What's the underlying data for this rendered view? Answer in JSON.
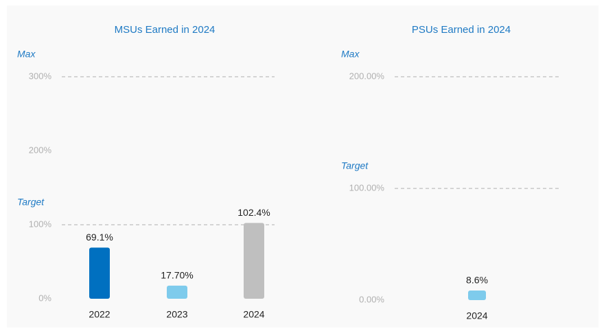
{
  "chart_data": [
    {
      "type": "bar",
      "title": "MSUs Earned in 2024",
      "categories": [
        "2022",
        "2023",
        "2024"
      ],
      "values": [
        69.1,
        17.7,
        102.4
      ],
      "value_labels": [
        "69.1%",
        "17.70%",
        "102.4%"
      ],
      "colors": [
        "#0070c0",
        "#7ecbec",
        "#bfbfbf"
      ],
      "ylim": [
        0,
        300
      ],
      "yticks": [
        {
          "value": 0,
          "label": "0%"
        },
        {
          "value": 100,
          "label": "100%"
        },
        {
          "value": 200,
          "label": "200%"
        },
        {
          "value": 300,
          "label": "300%"
        }
      ],
      "reference_lines": [
        {
          "label": "Max",
          "value": 300
        },
        {
          "label": "Target",
          "value": 100
        }
      ]
    },
    {
      "type": "bar",
      "title": "PSUs Earned in 2024",
      "categories": [
        "2024"
      ],
      "values": [
        8.6
      ],
      "value_labels": [
        "8.6%"
      ],
      "colors": [
        "#7ecbec"
      ],
      "ylim": [
        0,
        200
      ],
      "yticks": [
        {
          "value": 0,
          "label": "0.00%"
        },
        {
          "value": 100,
          "label": "100.00%"
        },
        {
          "value": 200,
          "label": "200.00%"
        }
      ],
      "reference_lines": [
        {
          "label": "Max",
          "value": 200
        },
        {
          "label": "Target",
          "value": 100
        }
      ]
    }
  ]
}
